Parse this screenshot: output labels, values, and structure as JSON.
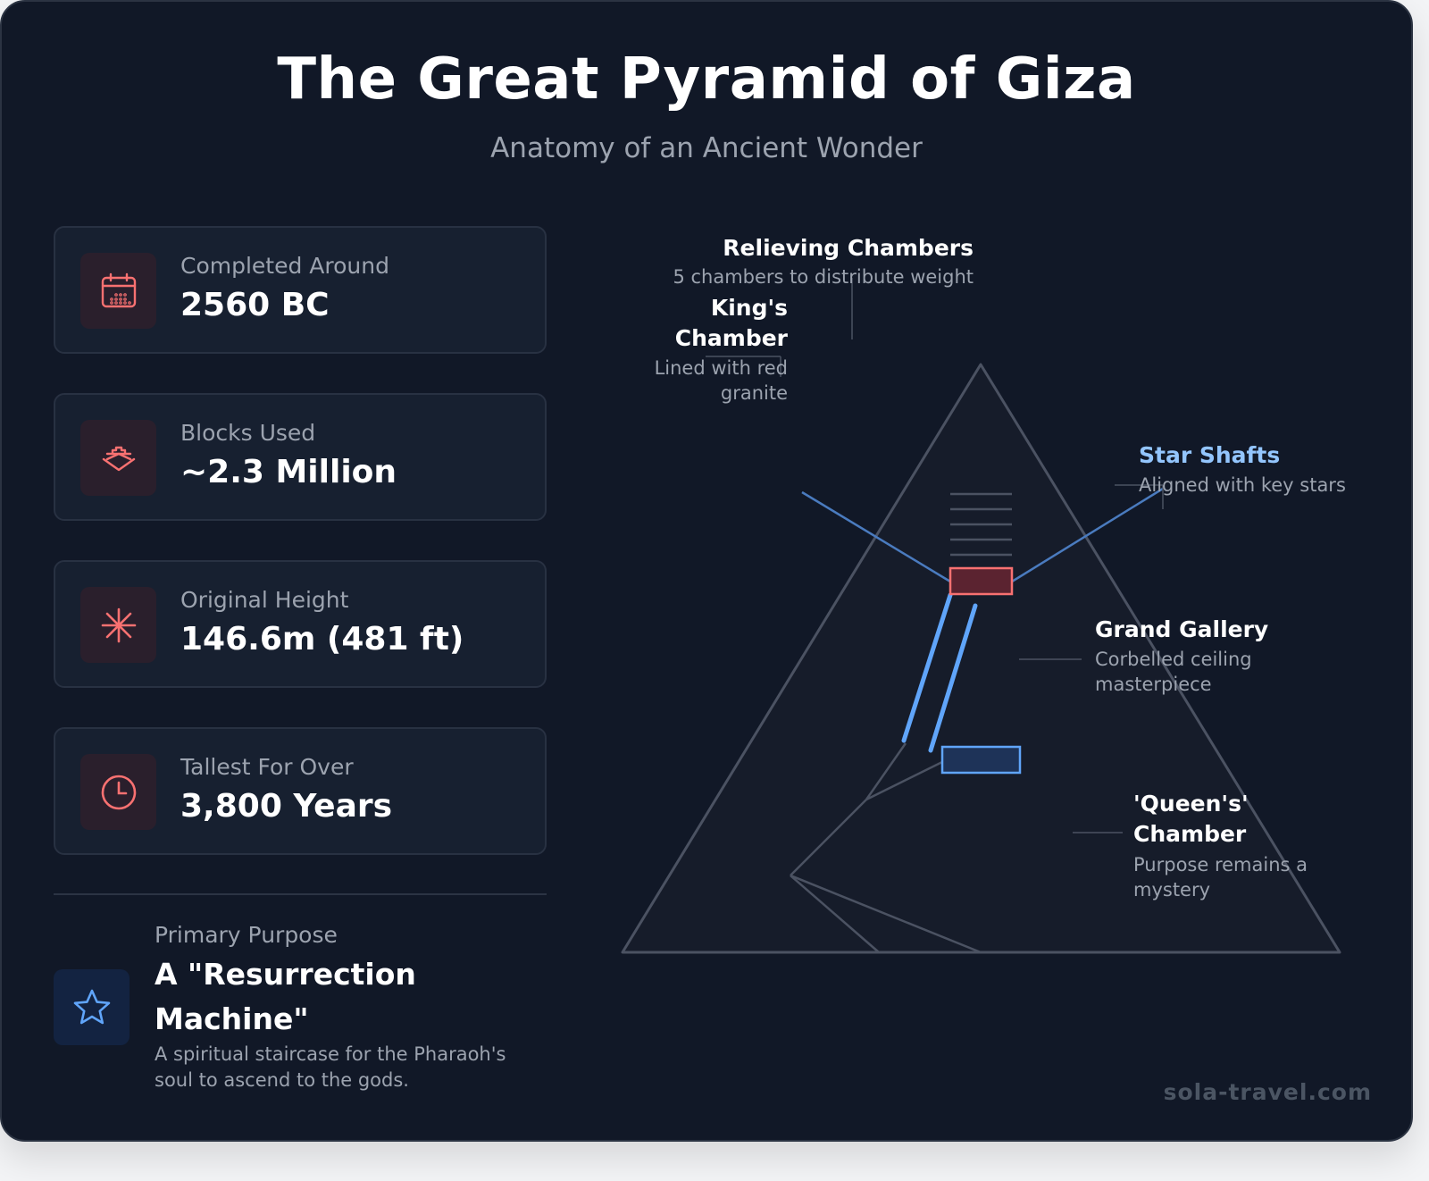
{
  "header": {
    "title": "The Great Pyramid of Giza",
    "subtitle": "Anatomy of an Ancient Wonder"
  },
  "stats": [
    {
      "label": "Completed Around",
      "value": "2560 BC",
      "icon": "calendar-icon"
    },
    {
      "label": "Blocks Used",
      "value": "~2.3 Million",
      "icon": "block-icon"
    },
    {
      "label": "Original Height",
      "value": "146.6m (481 ft)",
      "icon": "height-icon"
    },
    {
      "label": "Tallest For Over",
      "value": "3,800 Years",
      "icon": "clock-icon"
    }
  ],
  "purpose": {
    "label": "Primary Purpose",
    "title": "A \"Resurrection Machine\"",
    "description": "A spiritual staircase for the Pharaoh's soul to ascend to the gods.",
    "icon": "star-icon"
  },
  "annotations": {
    "relieving": {
      "title": "Relieving Chambers",
      "desc": "5 chambers to distribute weight"
    },
    "kings": {
      "title": "King's Chamber",
      "desc": "Lined with red granite"
    },
    "shafts": {
      "title": "Star Shafts",
      "desc": "Aligned with key stars"
    },
    "gallery": {
      "title": "Grand Gallery",
      "desc": "Corbelled ceiling masterpiece"
    },
    "queens": {
      "title": "'Queen's' Chamber",
      "desc": "Purpose remains a mystery"
    }
  },
  "colors": {
    "background": "#111827",
    "accent_red": "#f87171",
    "accent_blue": "#60a5fa",
    "muted": "#9ca3af"
  },
  "footer": {
    "brand": "sola-travel.com"
  }
}
